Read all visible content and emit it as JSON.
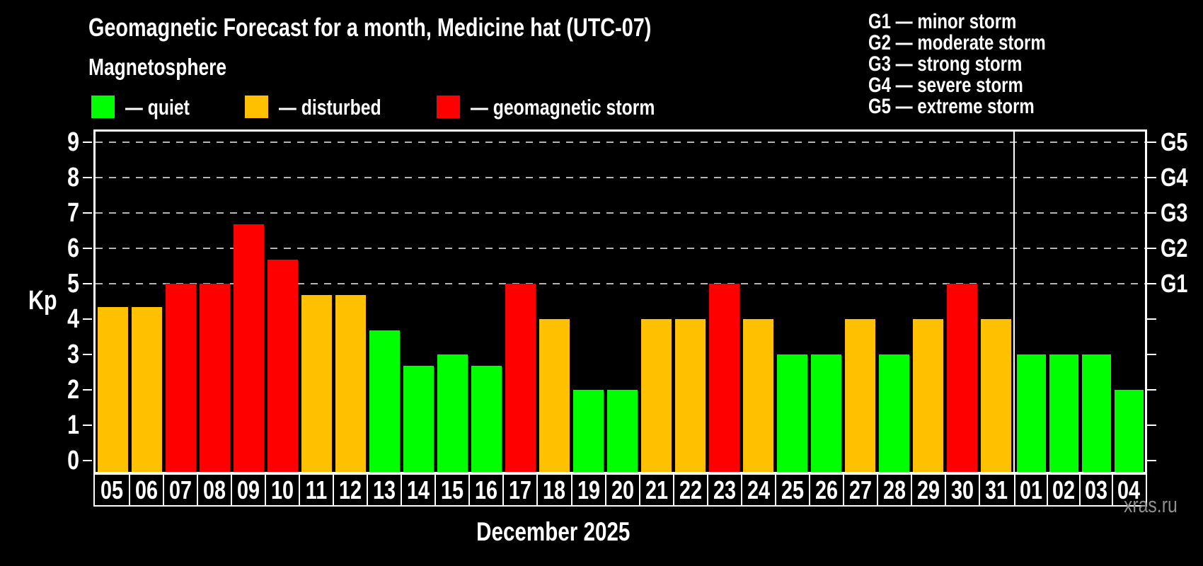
{
  "watermark": "xras.ru",
  "chart_data": {
    "type": "bar",
    "title": "Geomagnetic Forecast for a month, Medicine hat (UTC-07)",
    "subtitle": "Magnetosphere",
    "xlabel": "December 2025",
    "ylabel": "Kp",
    "ylim": [
      0,
      9
    ],
    "yticks": [
      0,
      1,
      2,
      3,
      4,
      5,
      6,
      7,
      8,
      9
    ],
    "grid_levels_kp": [
      5,
      6,
      7,
      8,
      9
    ],
    "grid_on": true,
    "right_axis_labels": [
      {
        "kp": 5,
        "label": "G1"
      },
      {
        "kp": 6,
        "label": "G2"
      },
      {
        "kp": 7,
        "label": "G3"
      },
      {
        "kp": 8,
        "label": "G4"
      },
      {
        "kp": 9,
        "label": "G5"
      }
    ],
    "legend": [
      {
        "status": "quiet",
        "label": "— quiet",
        "color": "#00ff00"
      },
      {
        "status": "disturbed",
        "label": "— disturbed",
        "color": "#ffc000"
      },
      {
        "status": "storm",
        "label": "— geomagnetic storm",
        "color": "#ff0000"
      }
    ],
    "g_scale_legend": [
      "G1 — minor storm",
      "G2 — moderate storm",
      "G3 — strong storm",
      "G4 — severe storm",
      "G5 — extreme storm"
    ],
    "month_divider_after_index": 26,
    "bars": [
      {
        "day": "05",
        "kp": 4.33,
        "status": "disturbed"
      },
      {
        "day": "06",
        "kp": 4.33,
        "status": "disturbed"
      },
      {
        "day": "07",
        "kp": 5,
        "status": "storm"
      },
      {
        "day": "08",
        "kp": 5,
        "status": "storm"
      },
      {
        "day": "09",
        "kp": 6.67,
        "status": "storm"
      },
      {
        "day": "10",
        "kp": 5.67,
        "status": "storm"
      },
      {
        "day": "11",
        "kp": 4.67,
        "status": "disturbed"
      },
      {
        "day": "12",
        "kp": 4.67,
        "status": "disturbed"
      },
      {
        "day": "13",
        "kp": 3.67,
        "status": "quiet"
      },
      {
        "day": "14",
        "kp": 2.67,
        "status": "quiet"
      },
      {
        "day": "15",
        "kp": 3,
        "status": "quiet"
      },
      {
        "day": "16",
        "kp": 2.67,
        "status": "quiet"
      },
      {
        "day": "17",
        "kp": 5,
        "status": "storm"
      },
      {
        "day": "18",
        "kp": 4,
        "status": "disturbed"
      },
      {
        "day": "19",
        "kp": 2,
        "status": "quiet"
      },
      {
        "day": "20",
        "kp": 2,
        "status": "quiet"
      },
      {
        "day": "21",
        "kp": 4,
        "status": "disturbed"
      },
      {
        "day": "22",
        "kp": 4,
        "status": "disturbed"
      },
      {
        "day": "23",
        "kp": 5,
        "status": "storm"
      },
      {
        "day": "24",
        "kp": 4,
        "status": "disturbed"
      },
      {
        "day": "25",
        "kp": 3,
        "status": "quiet"
      },
      {
        "day": "26",
        "kp": 3,
        "status": "quiet"
      },
      {
        "day": "27",
        "kp": 4,
        "status": "disturbed"
      },
      {
        "day": "28",
        "kp": 3,
        "status": "quiet"
      },
      {
        "day": "29",
        "kp": 4,
        "status": "disturbed"
      },
      {
        "day": "30",
        "kp": 5,
        "status": "storm"
      },
      {
        "day": "31",
        "kp": 4,
        "status": "disturbed"
      },
      {
        "day": "01",
        "kp": 3,
        "status": "quiet"
      },
      {
        "day": "02",
        "kp": 3,
        "status": "quiet"
      },
      {
        "day": "03",
        "kp": 3,
        "status": "quiet"
      },
      {
        "day": "04",
        "kp": 2,
        "status": "quiet"
      }
    ]
  }
}
